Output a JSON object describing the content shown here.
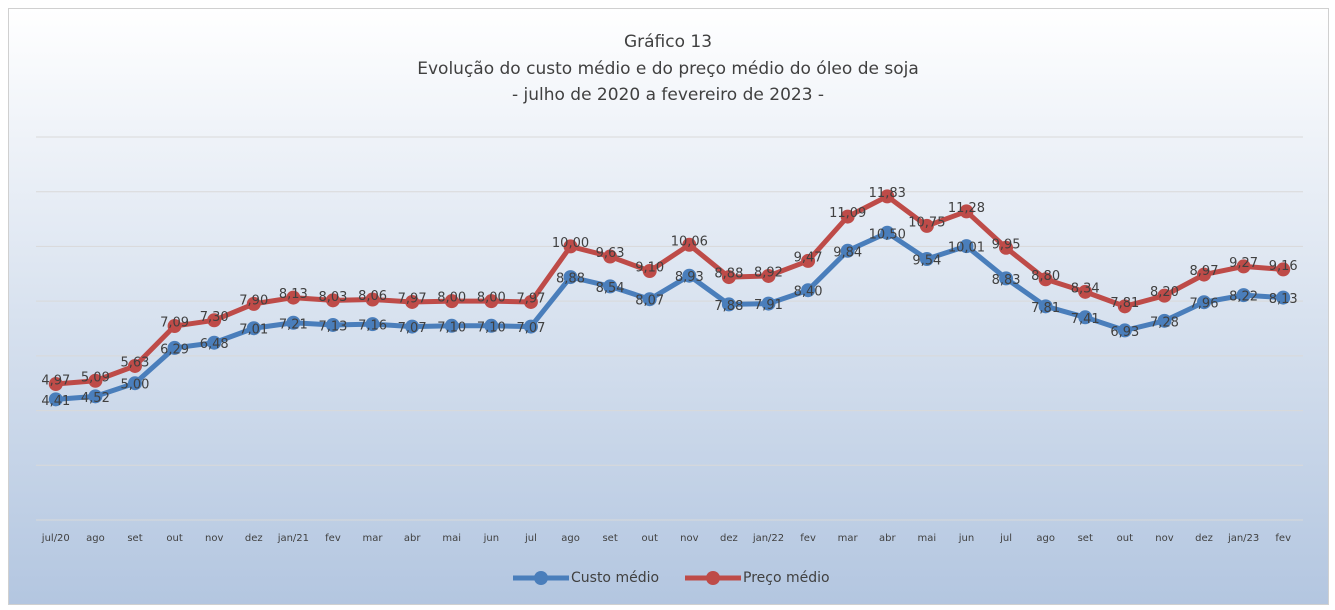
{
  "chart_data": {
    "type": "line",
    "title": "Gráfico 13",
    "subtitle": "Evolução do custo médio e do preço médio do óleo de soja",
    "subtitle2": "- julho de 2020 a fevereiro de 2023 -",
    "categories": [
      "jul/20",
      "ago",
      "set",
      "out",
      "nov",
      "dez",
      "jan/21",
      "fev",
      "mar",
      "abr",
      "mai",
      "jun",
      "jul",
      "ago",
      "set",
      "out",
      "nov",
      "dez",
      "jan/22",
      "fev",
      "mar",
      "abr",
      "mai",
      "jun",
      "jul",
      "ago",
      "set",
      "out",
      "nov",
      "dez",
      "jan/23",
      "fev"
    ],
    "series": [
      {
        "name": "Custo médio",
        "color": "#4a7ebb",
        "values": [
          4.41,
          4.52,
          5.0,
          6.29,
          6.48,
          7.01,
          7.21,
          7.13,
          7.16,
          7.07,
          7.1,
          7.1,
          7.07,
          8.88,
          8.54,
          8.07,
          8.93,
          7.88,
          7.91,
          8.4,
          9.84,
          10.5,
          9.54,
          10.01,
          8.83,
          7.81,
          7.41,
          6.93,
          7.28,
          7.96,
          8.22,
          8.13
        ],
        "value_labels": [
          "4,41",
          "4,52",
          "5,00",
          "6,29",
          "6,48",
          "7,01",
          "7,21",
          "7,13",
          "7,16",
          "7,07",
          "7,10",
          "7,10",
          "7,07",
          "8,88",
          "8,54",
          "8,07",
          "8,93",
          "7,88",
          "7,91",
          "8,40",
          "9,84",
          "10,50",
          "9,54",
          "10,01",
          "8,83",
          "7,81",
          "7,41",
          "6,93",
          "7,28",
          "7,96",
          "8,22",
          "8,13"
        ]
      },
      {
        "name": "Preço médio",
        "color": "#be4b48",
        "values": [
          4.97,
          5.09,
          5.63,
          7.09,
          7.3,
          7.9,
          8.13,
          8.03,
          8.06,
          7.97,
          8.0,
          8.0,
          7.97,
          10.0,
          9.63,
          9.1,
          10.06,
          8.88,
          8.92,
          9.47,
          11.09,
          11.83,
          10.75,
          11.28,
          9.95,
          8.8,
          8.34,
          7.81,
          8.2,
          8.97,
          9.27,
          9.16
        ],
        "value_labels": [
          "4,97",
          "5,09",
          "5,63",
          "7,09",
          "7,30",
          "7,90",
          "8,13",
          "8,03",
          "8,06",
          "7,97",
          "8,00",
          "8,00",
          "7,97",
          "10,00",
          "9,63",
          "9,10",
          "10,06",
          "8,88",
          "8,92",
          "9,47",
          "11,09",
          "11,83",
          "10,75",
          "11,28",
          "9,95",
          "8,80",
          "8,34",
          "7,81",
          "8,20",
          "8,97",
          "9,27",
          "9,16"
        ]
      }
    ],
    "ylim": [
      0,
      14
    ],
    "yticks": [
      0,
      2,
      4,
      6,
      8,
      10,
      12,
      14
    ],
    "grid": true,
    "legend": "bottom"
  }
}
